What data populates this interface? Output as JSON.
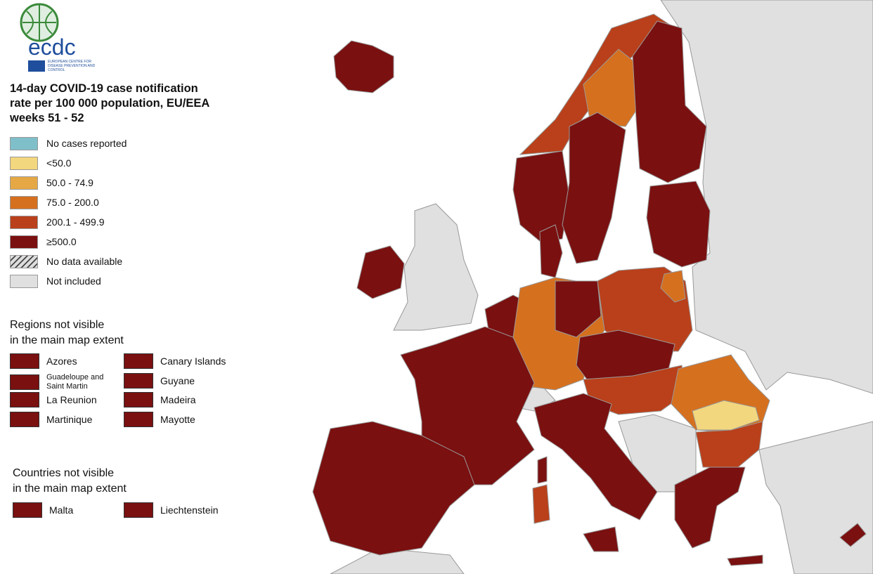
{
  "logo": {
    "acronym": "ecdc",
    "subtitle": "EUROPEAN CENTRE FOR DISEASE PREVENTION AND CONTROL"
  },
  "title": [
    "14-day COVID-19 case notification",
    "rate per 100 000 population, EU/EEA",
    "weeks 51 - 52"
  ],
  "legend": [
    {
      "label": "No cases reported",
      "color": "#7fbfca"
    },
    {
      "label": "<50.0",
      "color": "#f3d77e"
    },
    {
      "label": "50.0 - 74.9",
      "color": "#e5a845"
    },
    {
      "label": "75.0 - 200.0",
      "color": "#d5701f"
    },
    {
      "label": "200.1 - 499.9",
      "color": "#b9401a"
    },
    {
      "label": "≥500.0",
      "color": "#7a1010"
    },
    {
      "label": "No data available",
      "color": "hatch"
    },
    {
      "label": "Not included",
      "color": "#e0e0e0"
    }
  ],
  "regions": {
    "heading": [
      "Regions not visible",
      "in the main map extent"
    ],
    "items": [
      "Azores",
      "Canary Islands",
      "Guadeloupe and Saint Martin",
      "Guyane",
      "La Reunion",
      "Madeira",
      "Martinique",
      "Mayotte"
    ]
  },
  "countries": {
    "heading": [
      "Countries not visible",
      "in the main map extent"
    ],
    "items": [
      "Malta",
      "Liechtenstein"
    ]
  }
}
